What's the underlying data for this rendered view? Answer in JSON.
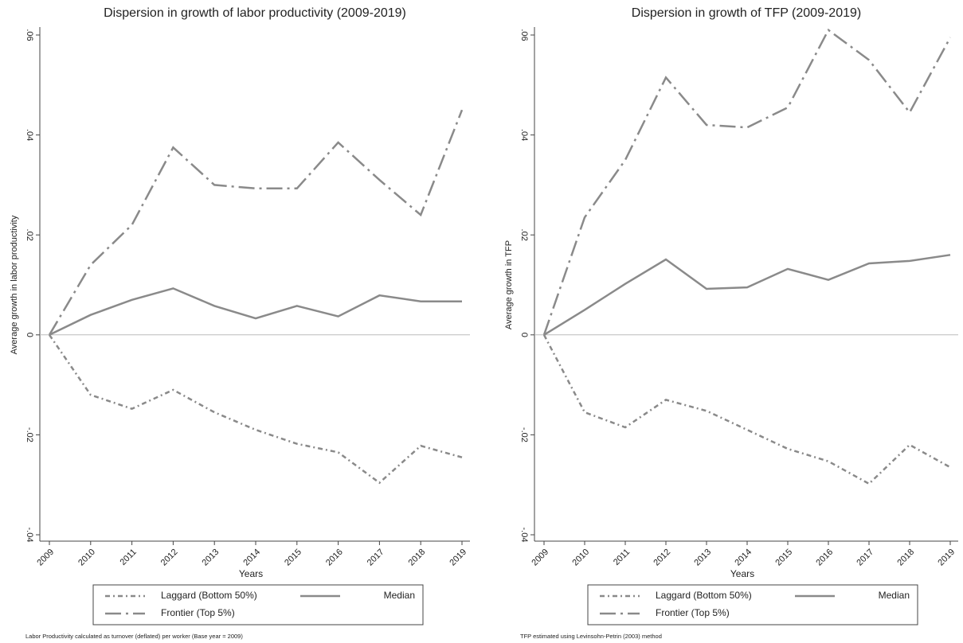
{
  "chart_data": [
    {
      "type": "line",
      "title": "Dispersion in growth of labor productivity (2009-2019)",
      "x_label": "Years",
      "y_label": "Average growth in labor productivity",
      "footnote": "Labor Productivity calculated as turnover (deflated) per worker (Base year = 2009)",
      "x": [
        2009,
        2010,
        2011,
        2012,
        2013,
        2014,
        2015,
        2016,
        2017,
        2018,
        2019
      ],
      "xlim": [
        2009,
        2019
      ],
      "xticks": [
        2009,
        2010,
        2011,
        2012,
        2013,
        2014,
        2015,
        2016,
        2017,
        2018,
        2019
      ],
      "ylim": [
        -0.04,
        0.06
      ],
      "yticks": [
        {
          "value": -0.04,
          "label": "-.04"
        },
        {
          "value": -0.02,
          "label": "-.02"
        },
        0,
        {
          "value": 0.02,
          "label": ".02"
        },
        {
          "value": 0.04,
          "label": ".04"
        },
        {
          "value": 0.06,
          "label": ".06"
        }
      ],
      "reference_line": 0,
      "series": [
        {
          "name": "Laggard (Bottom 50%)",
          "color": "#8a8a8a",
          "dash": "dashdot",
          "values": [
            0,
            -0.012,
            -0.0148,
            -0.011,
            -0.0155,
            -0.019,
            -0.0218,
            -0.0235,
            -0.0296,
            -0.0222,
            -0.0245
          ]
        },
        {
          "name": "Median",
          "color": "#8a8a8a",
          "dash": "solid",
          "values": [
            0,
            0.004,
            0.007,
            0.0093,
            0.0058,
            0.0033,
            0.0058,
            0.0037,
            0.0079,
            0.0067,
            0.0067
          ]
        },
        {
          "name": "Frontier (Top 5%)",
          "color": "#8a8a8a",
          "dash": "longdashdot",
          "values": [
            0,
            0.014,
            0.022,
            0.0375,
            0.03,
            0.0293,
            0.0293,
            0.0385,
            0.031,
            0.024,
            0.045
          ]
        }
      ]
    },
    {
      "type": "line",
      "title": "Dispersion in growth of TFP (2009-2019)",
      "x_label": "Years",
      "y_label": "Average growth in TFP",
      "footnote": "TFP estimated using Levinsohn-Petrin (2003) method",
      "x": [
        2009,
        2010,
        2011,
        2012,
        2013,
        2014,
        2015,
        2016,
        2017,
        2018,
        2019
      ],
      "xlim": [
        2009,
        2019
      ],
      "xticks": [
        2009,
        2010,
        2011,
        2012,
        2013,
        2014,
        2015,
        2016,
        2017,
        2018,
        2019
      ],
      "ylim": [
        -0.04,
        0.06
      ],
      "yticks": [
        {
          "value": -0.04,
          "label": "-.04"
        },
        {
          "value": -0.02,
          "label": "-.02"
        },
        0,
        {
          "value": 0.02,
          "label": ".02"
        },
        {
          "value": 0.04,
          "label": ".04"
        },
        {
          "value": 0.06,
          "label": ".06"
        }
      ],
      "reference_line": 0,
      "series": [
        {
          "name": "Laggard (Bottom 50%)",
          "color": "#8a8a8a",
          "dash": "dashdot",
          "values": [
            0,
            -0.0155,
            -0.0185,
            -0.013,
            -0.0152,
            -0.019,
            -0.0228,
            -0.0253,
            -0.0298,
            -0.022,
            -0.0265
          ]
        },
        {
          "name": "Median",
          "color": "#8a8a8a",
          "dash": "solid",
          "values": [
            0,
            0.005,
            0.0102,
            0.0151,
            0.0092,
            0.0095,
            0.0132,
            0.011,
            0.0143,
            0.0148,
            0.016
          ]
        },
        {
          "name": "Frontier (Top 5%)",
          "color": "#8a8a8a",
          "dash": "longdashdot",
          "values": [
            0,
            0.0235,
            0.035,
            0.0515,
            0.042,
            0.0415,
            0.0455,
            0.061,
            0.055,
            0.0445,
            0.0595
          ]
        }
      ]
    }
  ]
}
